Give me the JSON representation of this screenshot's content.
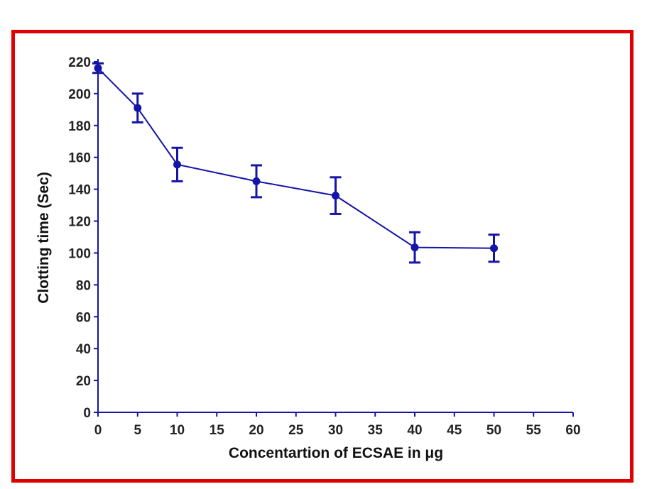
{
  "colors": {
    "frame": "#e00000",
    "series": "#1414a8",
    "axis": "#1414a8",
    "text": "#222222"
  },
  "chart_data": {
    "type": "line",
    "title": "",
    "xlabel": "Concentartion of ECSAE in μg",
    "ylabel": "Clotting time (Sec)",
    "xlim": [
      0,
      60
    ],
    "ylim": [
      0,
      220
    ],
    "xticks": [
      0,
      5,
      10,
      15,
      20,
      25,
      30,
      35,
      40,
      45,
      50,
      55,
      60
    ],
    "yticks": [
      0,
      20,
      40,
      60,
      80,
      100,
      120,
      140,
      160,
      180,
      200,
      220
    ],
    "grid": false,
    "series": [
      {
        "x": [
          0,
          5,
          10,
          20,
          30,
          40,
          50
        ],
        "y": [
          216,
          191,
          155.5,
          145,
          136,
          103.5,
          103
        ],
        "error": [
          3,
          9,
          10.5,
          10,
          11.5,
          9.5,
          8.5
        ]
      }
    ]
  }
}
